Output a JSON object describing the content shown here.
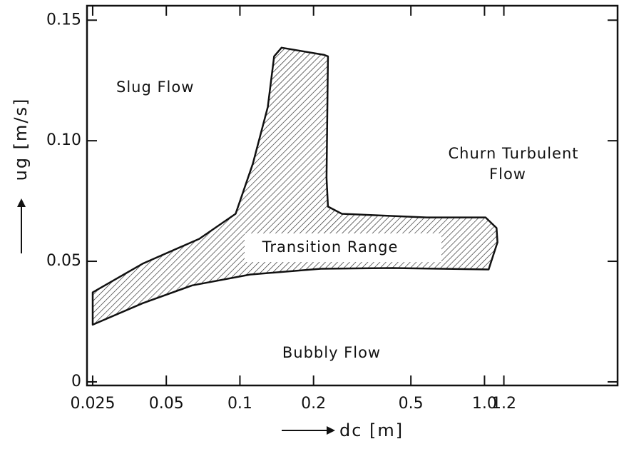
{
  "chart_data": {
    "type": "region",
    "xlabel": "dc [m]",
    "ylabel": "ug [m/s]",
    "xscale": "log",
    "xlim": [
      0.0237,
      3.5
    ],
    "ylim": [
      -0.0015,
      0.156
    ],
    "xticks": [
      0.025,
      0.05,
      0.1,
      0.2,
      0.5,
      {
        "value": 1.0,
        "label": "1.0"
      },
      1.2
    ],
    "yticks": [
      0,
      0.05,
      {
        "value": 0.1,
        "label": "0.10"
      },
      0.15
    ],
    "region": {
      "x": [
        0.025,
        0.04,
        0.0638,
        0.11,
        0.214,
        0.42,
        1.04,
        1.13,
        1.12,
        1.01,
        0.58,
        0.261,
        0.229,
        0.226,
        0.229,
        0.221,
        0.148,
        0.138,
        0.13,
        0.113,
        0.096,
        0.0682,
        0.04,
        0.025
      ],
      "y": [
        0.0237,
        0.0326,
        0.04,
        0.0445,
        0.0469,
        0.0472,
        0.0466,
        0.0579,
        0.0638,
        0.0682,
        0.0682,
        0.0697,
        0.0727,
        0.0846,
        0.135,
        0.1356,
        0.1386,
        0.135,
        0.114,
        0.0905,
        0.0697,
        0.0593,
        0.049,
        0.0371
      ]
    },
    "annotations": [
      "Slug Flow",
      "Churn Turbulent",
      "Flow",
      "Transition Range",
      "Bubbly Flow"
    ]
  }
}
